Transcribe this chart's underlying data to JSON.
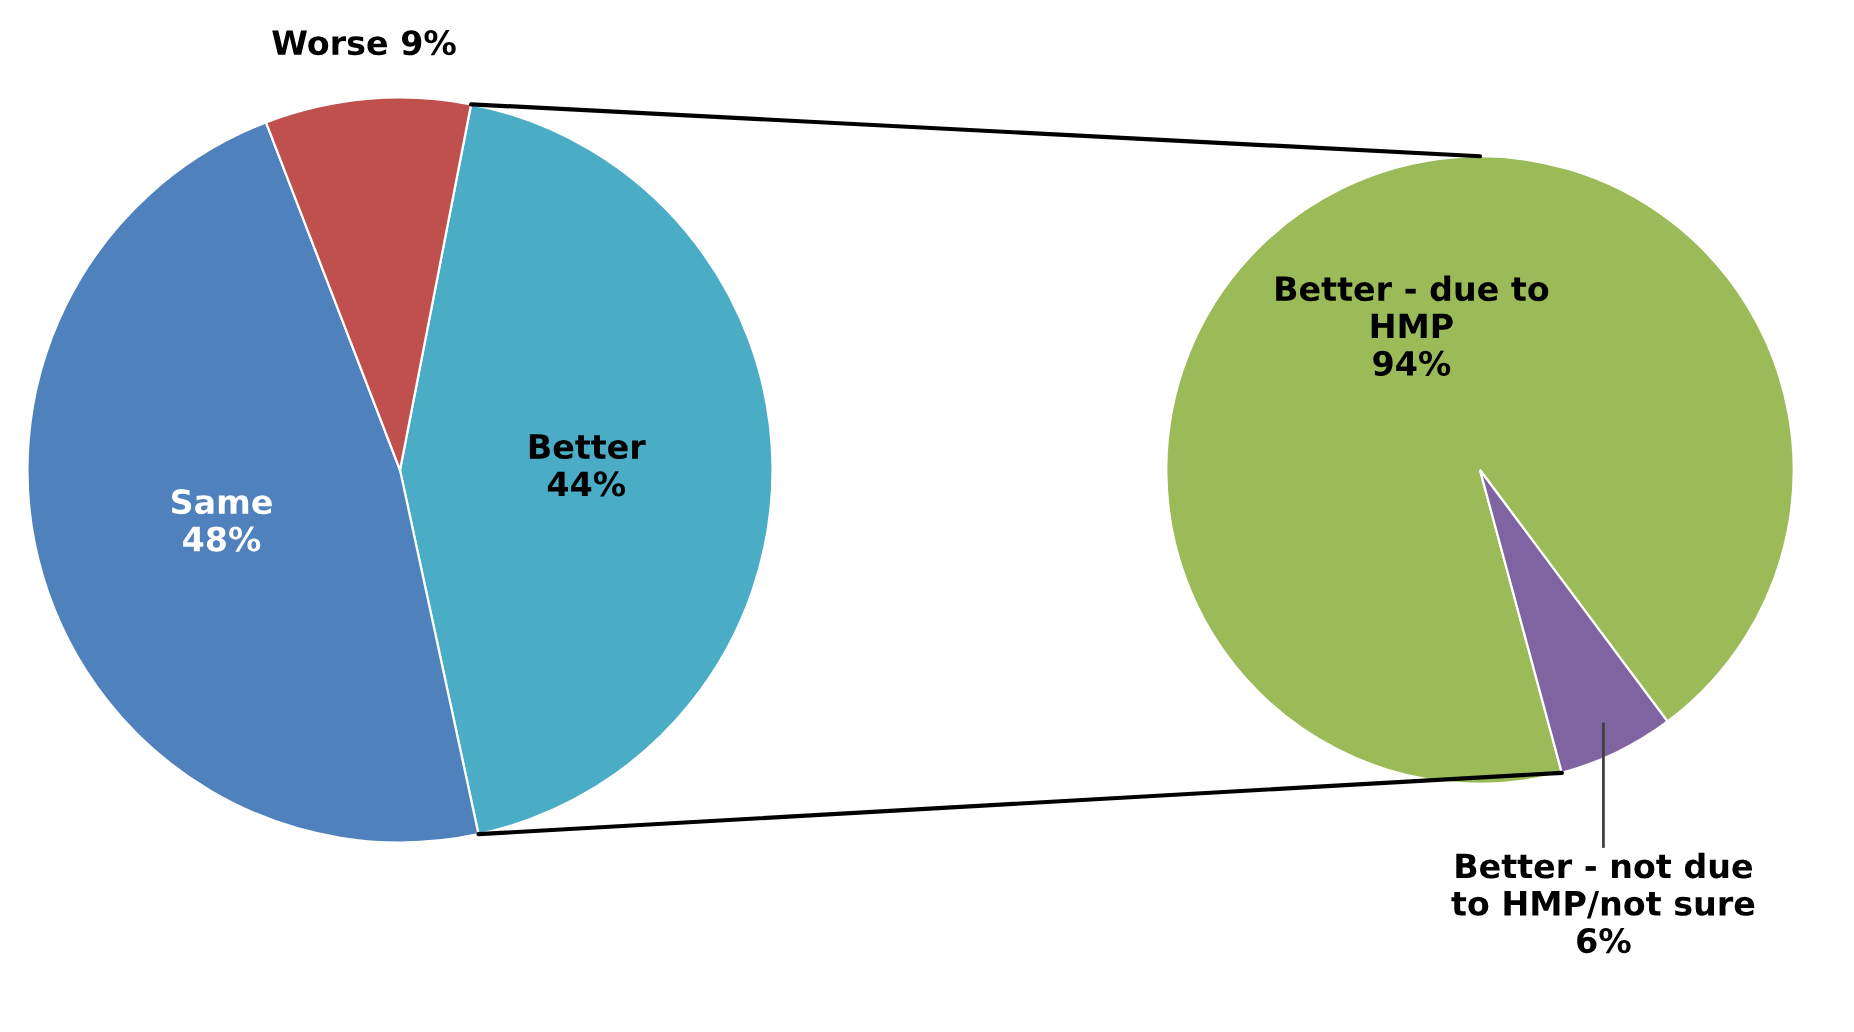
{
  "chart_data": [
    {
      "type": "pie",
      "categories": [
        "Better",
        "Same",
        "Worse"
      ],
      "values": [
        44,
        48,
        9
      ],
      "value_labels": [
        "44%",
        "48%",
        "9%"
      ],
      "colors": [
        "#4bacc6",
        "#4f81bd",
        "#c0504d"
      ]
    },
    {
      "type": "pie",
      "categories": [
        "Better - due to\nHMP",
        "Better - not due\nto HMP/not sure"
      ],
      "values": [
        94,
        6
      ],
      "value_labels": [
        "94%",
        "6%"
      ],
      "colors": [
        "#9bbb59",
        "#8064a2"
      ]
    }
  ]
}
